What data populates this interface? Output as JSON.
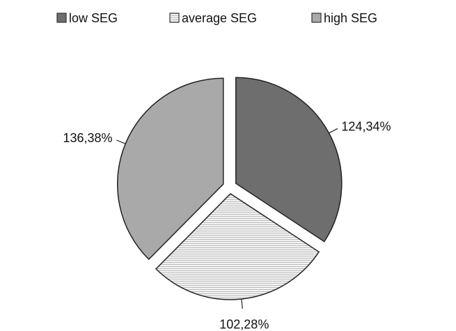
{
  "chart_data": {
    "type": "pie",
    "categories": [
      "low SEG",
      "average SEG",
      "high SEG"
    ],
    "values": [
      124.34,
      102.28,
      136.38
    ],
    "value_labels": [
      "124,34%",
      "102,28%",
      "136,38%"
    ],
    "colors": [
      "#6e6e6e",
      "#ececec",
      "#a9a9a9"
    ],
    "legend": "top"
  }
}
